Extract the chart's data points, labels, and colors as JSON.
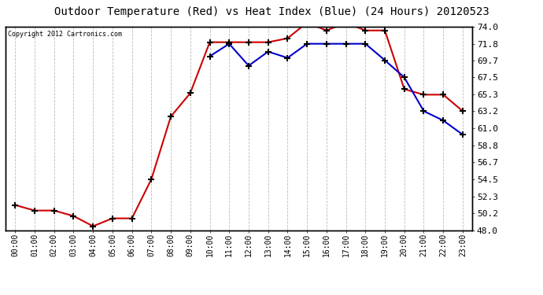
{
  "title": "Outdoor Temperature (Red) vs Heat Index (Blue) (24 Hours) 20120523",
  "copyright": "Copyright 2012 Cartronics.com",
  "x_labels": [
    "00:00",
    "01:00",
    "02:00",
    "03:00",
    "04:00",
    "05:00",
    "06:00",
    "07:00",
    "08:00",
    "09:00",
    "10:00",
    "11:00",
    "12:00",
    "13:00",
    "14:00",
    "15:00",
    "16:00",
    "17:00",
    "18:00",
    "19:00",
    "20:00",
    "21:00",
    "22:00",
    "23:00"
  ],
  "red_data": [
    51.2,
    50.5,
    50.5,
    49.8,
    48.5,
    49.5,
    49.5,
    54.5,
    62.5,
    65.5,
    72.0,
    72.0,
    72.0,
    72.0,
    72.5,
    74.5,
    73.5,
    74.5,
    73.5,
    73.5,
    66.0,
    65.3,
    65.3,
    63.2
  ],
  "blue_data": [
    null,
    null,
    null,
    null,
    null,
    null,
    null,
    null,
    null,
    null,
    70.2,
    71.8,
    69.0,
    70.8,
    70.0,
    71.8,
    71.8,
    71.8,
    71.8,
    69.7,
    67.5,
    63.2,
    62.0,
    60.2
  ],
  "ylim": [
    48.0,
    74.0
  ],
  "yticks": [
    48.0,
    50.2,
    52.3,
    54.5,
    56.7,
    58.8,
    61.0,
    63.2,
    65.3,
    67.5,
    69.7,
    71.8,
    74.0
  ],
  "bg_color": "#ffffff",
  "plot_bg_color": "#ffffff",
  "grid_color": "#bbbbbb",
  "red_color": "#cc0000",
  "blue_color": "#0000cc",
  "title_fontsize": 10,
  "marker_size": 4
}
